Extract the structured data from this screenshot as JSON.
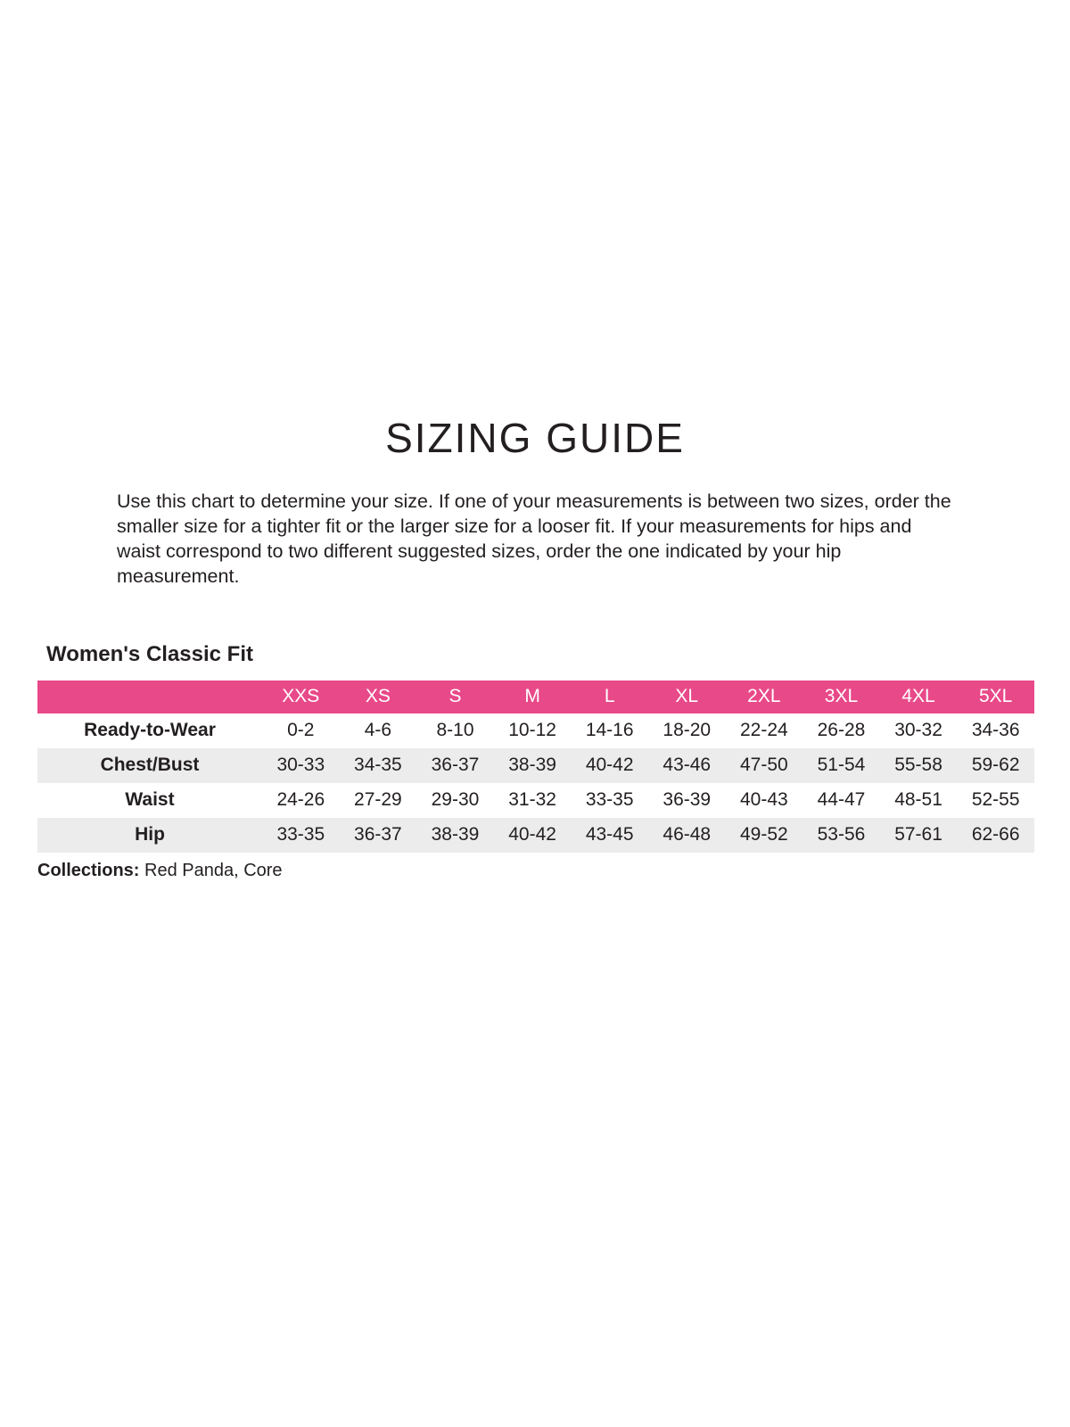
{
  "page": {
    "title": "SIZING GUIDE",
    "intro": "Use this chart to determine your size. If one of your measurements is between two sizes, order the smaller size for a tighter fit or the larger size for a looser fit. If your measurements for hips and waist correspond to two different suggested sizes, order the one indicated by your hip measurement.",
    "section_title": "Women's Classic Fit",
    "collections_label": "Collections:",
    "collections_value": " Red Panda, Core"
  },
  "colors": {
    "accent_pink": "#e84989",
    "row_alt_gray": "#ececec",
    "text": "#231f20",
    "header_text": "#ffffff"
  },
  "chart_data": {
    "type": "table",
    "title": "Women's Classic Fit",
    "columns": [
      "",
      "XXS",
      "XS",
      "S",
      "M",
      "L",
      "XL",
      "2XL",
      "3XL",
      "4XL",
      "5XL"
    ],
    "rows": [
      {
        "label": "Ready-to-Wear",
        "values": [
          "0-2",
          "4-6",
          "8-10",
          "10-12",
          "14-16",
          "18-20",
          "22-24",
          "26-28",
          "30-32",
          "34-36"
        ]
      },
      {
        "label": "Chest/Bust",
        "values": [
          "30-33",
          "34-35",
          "36-37",
          "38-39",
          "40-42",
          "43-46",
          "47-50",
          "51-54",
          "55-58",
          "59-62"
        ]
      },
      {
        "label": "Waist",
        "values": [
          "24-26",
          "27-29",
          "29-30",
          "31-32",
          "33-35",
          "36-39",
          "40-43",
          "44-47",
          "48-51",
          "52-55"
        ]
      },
      {
        "label": "Hip",
        "values": [
          "33-35",
          "36-37",
          "38-39",
          "40-42",
          "43-45",
          "46-48",
          "49-52",
          "53-56",
          "57-61",
          "62-66"
        ]
      }
    ]
  }
}
